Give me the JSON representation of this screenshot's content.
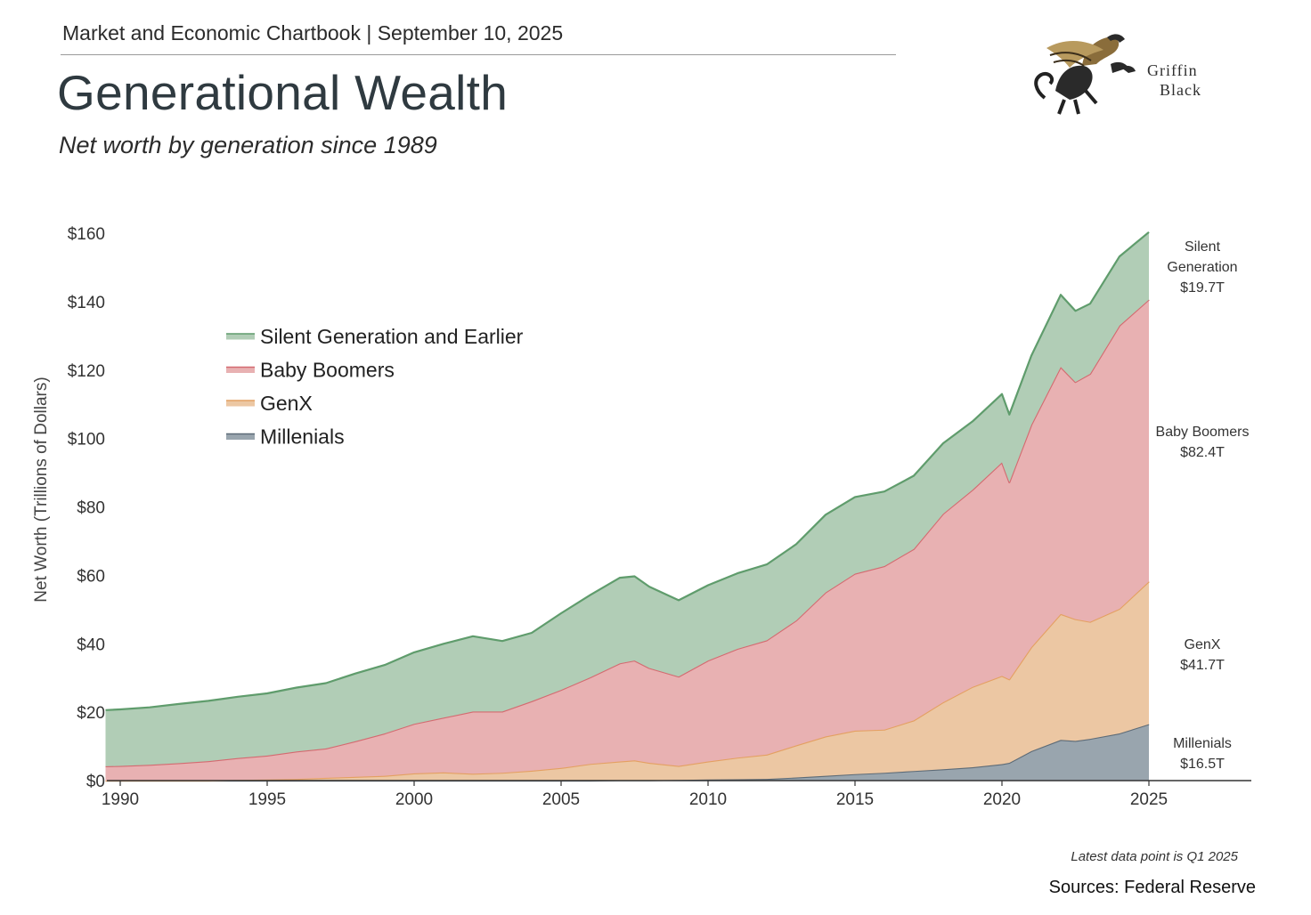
{
  "header": {
    "kicker": "Market and Economic Chartbook | September 10, 2025",
    "title": "Generational Wealth",
    "subtitle": "Net worth by generation since 1989"
  },
  "logo": {
    "line1": "Griffin",
    "line2": "Black",
    "icon": "griffin-icon"
  },
  "footer": {
    "note": "Latest data point is Q1 2025",
    "source": "Sources: Federal Reserve"
  },
  "colors": {
    "silent_fill": "#b1cdb6",
    "silent_line": "#5f9c6c",
    "boomers_fill": "#e8b1b2",
    "boomers_line": "#d46a70",
    "genx_fill": "#ecc7a3",
    "genx_line": "#e4a062",
    "millenials_fill": "#99a5ae",
    "millenials_line": "#5d6b77"
  },
  "chart_data": {
    "type": "area",
    "stacked": true,
    "ylabel": "Net Worth (Trillions of Dollars)",
    "xlabel": "",
    "xlim": [
      1989.5,
      2028.5
    ],
    "ylim": [
      0,
      160
    ],
    "xticks": [
      1990,
      1995,
      2000,
      2005,
      2010,
      2015,
      2020,
      2025
    ],
    "yticks": [
      0,
      20,
      40,
      60,
      80,
      100,
      120,
      140,
      160
    ],
    "xtick_labels": [
      "1990",
      "1995",
      "2000",
      "2005",
      "2010",
      "2015",
      "2020",
      "2025"
    ],
    "ytick_labels": [
      "$0",
      "$20",
      "$40",
      "$60",
      "$80",
      "$100",
      "$120",
      "$140",
      "$160"
    ],
    "grid": false,
    "legend_position": "top-left",
    "legend": [
      "Silent Generation and Earlier",
      "Baby Boomers",
      "GenX",
      "Millenials"
    ],
    "x": [
      1989.5,
      1990,
      1991,
      1992,
      1993,
      1994,
      1995,
      1996,
      1997,
      1998,
      1999,
      2000,
      2001,
      2002,
      2003,
      2004,
      2005,
      2006,
      2007,
      2007.5,
      2008,
      2009,
      2010,
      2011,
      2012,
      2013,
      2014,
      2015,
      2016,
      2017,
      2018,
      2019,
      2020,
      2020.25,
      2021,
      2022,
      2022.5,
      2023,
      2024,
      2025
    ],
    "series": [
      {
        "name": "Millenials",
        "values": [
          0,
          0,
          0,
          0,
          0,
          0,
          0,
          0,
          0,
          0,
          0,
          0,
          0,
          0,
          0,
          0,
          0,
          0,
          0.1,
          0.1,
          0.1,
          0.2,
          0.3,
          0.4,
          0.5,
          0.9,
          1.4,
          1.9,
          2.3,
          2.8,
          3.3,
          3.9,
          4.8,
          5.2,
          8.6,
          11.9,
          11.6,
          12.2,
          13.8,
          16.5
        ]
      },
      {
        "name": "GenX",
        "values": [
          0,
          0,
          0,
          0,
          0,
          0.2,
          0.3,
          0.5,
          0.8,
          1.1,
          1.4,
          2.1,
          2.4,
          2.0,
          2.3,
          2.9,
          3.7,
          4.9,
          5.5,
          5.8,
          5.1,
          4.1,
          5.3,
          6.3,
          7.1,
          9.4,
          11.5,
          12.7,
          12.6,
          14.8,
          19.6,
          23.5,
          25.8,
          24.4,
          30.4,
          36.8,
          35.6,
          34.2,
          36.4,
          41.7
        ]
      },
      {
        "name": "Baby Boomers",
        "values": [
          4.2,
          4.3,
          4.6,
          5.1,
          5.7,
          6.4,
          7.0,
          8.0,
          8.6,
          10.4,
          12.4,
          14.5,
          16.0,
          18.2,
          17.9,
          20.3,
          22.8,
          25.3,
          28.7,
          29.2,
          27.7,
          26.1,
          29.5,
          31.8,
          33.4,
          36.5,
          42.1,
          45.9,
          47.8,
          50.1,
          55.1,
          57.6,
          62.4,
          57.6,
          65.0,
          72.2,
          69.3,
          72.5,
          82.8,
          82.4
        ]
      },
      {
        "name": "Silent Generation and Earlier",
        "values": [
          16.4,
          16.5,
          16.8,
          17.3,
          17.6,
          17.9,
          18.2,
          18.7,
          19.1,
          19.8,
          20.0,
          20.9,
          21.6,
          22.0,
          20.6,
          20.0,
          22.4,
          24.1,
          25.0,
          24.6,
          23.8,
          22.3,
          22.0,
          22.1,
          22.2,
          22.3,
          22.7,
          22.4,
          21.8,
          21.4,
          20.6,
          20.0,
          20.0,
          19.8,
          20.2,
          21.1,
          20.8,
          20.5,
          20.2,
          19.7
        ]
      }
    ],
    "end_labels": [
      {
        "name": "Silent Generation and Earlier",
        "lines": [
          "Silent",
          "Generation",
          "$19.7T"
        ]
      },
      {
        "name": "Baby Boomers",
        "lines": [
          "Baby Boomers",
          "$82.4T"
        ]
      },
      {
        "name": "GenX",
        "lines": [
          "GenX",
          "$41.7T"
        ]
      },
      {
        "name": "Millenials",
        "lines": [
          "Millenials",
          "$16.5T"
        ]
      }
    ]
  }
}
